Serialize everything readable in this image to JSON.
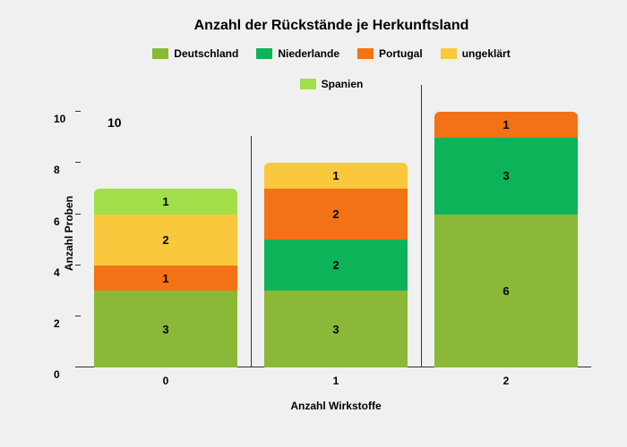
{
  "chart": {
    "type": "stacked-bar",
    "title": "Anzahl der Rückstände je Herkunftsland",
    "title_fontsize": 16,
    "background_color": "#f0f0f0",
    "xlabel": "Anzahl Wirkstoffe",
    "ylabel": "Anzahl Proben",
    "label_fontsize": 12,
    "ylim": [
      0,
      10.5
    ],
    "ytick_step": 2,
    "yticks": [
      "0",
      "2",
      "4",
      "6",
      "8",
      "10"
    ],
    "categories": [
      "0",
      "1",
      "2"
    ],
    "bar_width": 0.85,
    "text_color": "#000000",
    "series": [
      {
        "name": "Deutschland",
        "color": "#89b937"
      },
      {
        "name": "Niederlande",
        "color": "#0db358"
      },
      {
        "name": "Portugal",
        "color": "#f47216"
      },
      {
        "name": "ungeklärt",
        "color": "#f9c83d"
      },
      {
        "name": "Spanien",
        "color": "#a2de4a"
      }
    ],
    "stacks": [
      [
        {
          "series": "Deutschland",
          "value": 3,
          "label": "3",
          "color": "#89b937"
        },
        {
          "series": "Portugal",
          "value": 1,
          "label": "1",
          "color": "#f47216"
        },
        {
          "series": "ungeklärt",
          "value": 2,
          "label": "2",
          "color": "#f9c83d"
        },
        {
          "series": "Spanien",
          "value": 1,
          "label": "1",
          "color": "#a2de4a"
        }
      ],
      [
        {
          "series": "Deutschland",
          "value": 3,
          "label": "3",
          "color": "#89b937"
        },
        {
          "series": "Niederlande",
          "value": 2,
          "label": "2",
          "color": "#0db358"
        },
        {
          "series": "Portugal",
          "value": 2,
          "label": "2",
          "color": "#f47216"
        },
        {
          "series": "ungeklärt",
          "value": 1,
          "label": "1",
          "color": "#f9c83d"
        }
      ],
      [
        {
          "series": "Deutschland",
          "value": 6,
          "label": "6",
          "color": "#89b937"
        },
        {
          "series": "Niederlande",
          "value": 3,
          "label": "3",
          "color": "#0db358"
        },
        {
          "series": "Portugal",
          "value": 1,
          "label": "1",
          "color": "#f47216"
        }
      ]
    ],
    "annotation_10": "10"
  }
}
